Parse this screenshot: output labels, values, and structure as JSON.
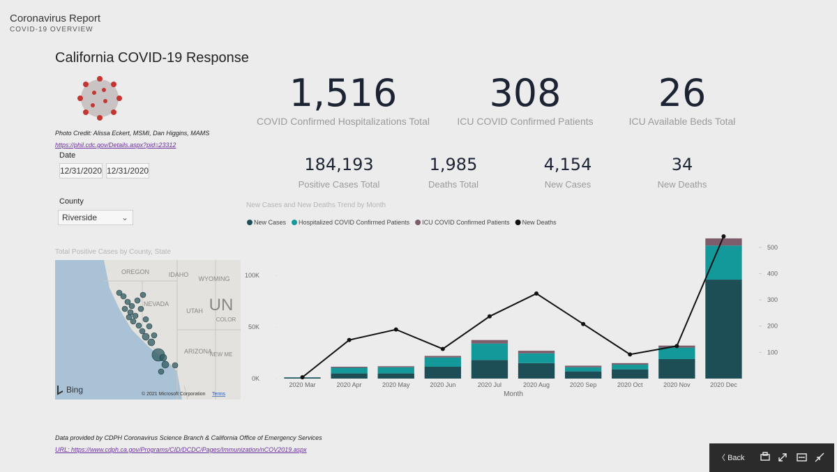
{
  "header": {
    "title": "Coronavirus Report",
    "subtitle": "COVID-19 OVERVIEW"
  },
  "page_title": "California COVID-19 Response",
  "photo_credit": "Photo Credit: Alissa Eckert, MSMI, Dan Higgins, MAMS",
  "photo_link": "https://phil.cdc.gov/Details.aspx?pid=23312",
  "date_filter": {
    "label": "Date",
    "start": "12/31/2020",
    "end": "12/31/2020"
  },
  "county_filter": {
    "label": "County",
    "value": "Riverside"
  },
  "kpis": [
    {
      "value": "1,516",
      "label": "COVID Confirmed Hospitalizations Total"
    },
    {
      "value": "308",
      "label": "ICU COVID Confirmed Patients"
    },
    {
      "value": "26",
      "label": "ICU Available Beds Total"
    },
    {
      "value": "184,193",
      "label": "Positive Cases Total"
    },
    {
      "value": "1,985",
      "label": "Deaths Total"
    },
    {
      "value": "4,154",
      "label": "New Cases"
    },
    {
      "value": "34",
      "label": "New Deaths"
    }
  ],
  "map": {
    "title": "Total Positive Cases by County, State",
    "labels": [
      "OREGON",
      "IDAHO",
      "WYOMING",
      "NEVADA",
      "UTAH",
      "COLOR",
      "UN",
      "ARIZONA",
      "NEW ME"
    ],
    "provider": "Bing",
    "copyright": "© 2021 Microsoft Corporation",
    "terms": "Terms"
  },
  "chart_data": {
    "type": "combo",
    "stacked": true,
    "title": "New Cases and New Deaths Trend by Month",
    "x_label": "Month",
    "categories": [
      "2020 Mar",
      "2020 Apr",
      "2020 May",
      "2020 Jun",
      "2020 Jul",
      "2020 Aug",
      "2020 Sep",
      "2020 Oct",
      "2020 Nov",
      "2020 Dec"
    ],
    "series": [
      {
        "name": "New Cases",
        "color": "#1d4e56",
        "values": [
          1000,
          5000,
          5000,
          11500,
          18000,
          15000,
          7000,
          9000,
          19000,
          96000
        ]
      },
      {
        "name": "Hospitalized COVID Confirmed Patients",
        "color": "#13999a",
        "values": [
          200,
          5500,
          6000,
          9000,
          16000,
          9500,
          4000,
          4500,
          11000,
          33000
        ]
      },
      {
        "name": "ICU COVID Confirmed Patients",
        "color": "#7d5c6c",
        "values": [
          50,
          1000,
          1000,
          1500,
          3400,
          2500,
          1500,
          1500,
          2000,
          7000
        ]
      },
      {
        "name": "New Deaths",
        "color": "#111111",
        "axis": "y2",
        "values": [
          5,
          147,
          187,
          113,
          237,
          324,
          208,
          92,
          124,
          542
        ]
      }
    ],
    "ylim": [
      0,
      140000
    ],
    "yticks": [
      {
        "value": 0,
        "label": "0K"
      },
      {
        "value": 50000,
        "label": "50K"
      },
      {
        "value": 100000,
        "label": "100K"
      }
    ],
    "y2lim": [
      0,
      550
    ],
    "y2ticks": [
      100,
      200,
      300,
      400,
      500
    ]
  },
  "footer": {
    "source": "Data provided by CDPH Coronavirus Science Branch & California Office of Emergency Services",
    "url": "URL: https://www.cdph.ca.gov/Programs/CID/DCDC/Pages/Immunization/nCOV2019.aspx"
  },
  "toolbar": {
    "back": "Back"
  }
}
